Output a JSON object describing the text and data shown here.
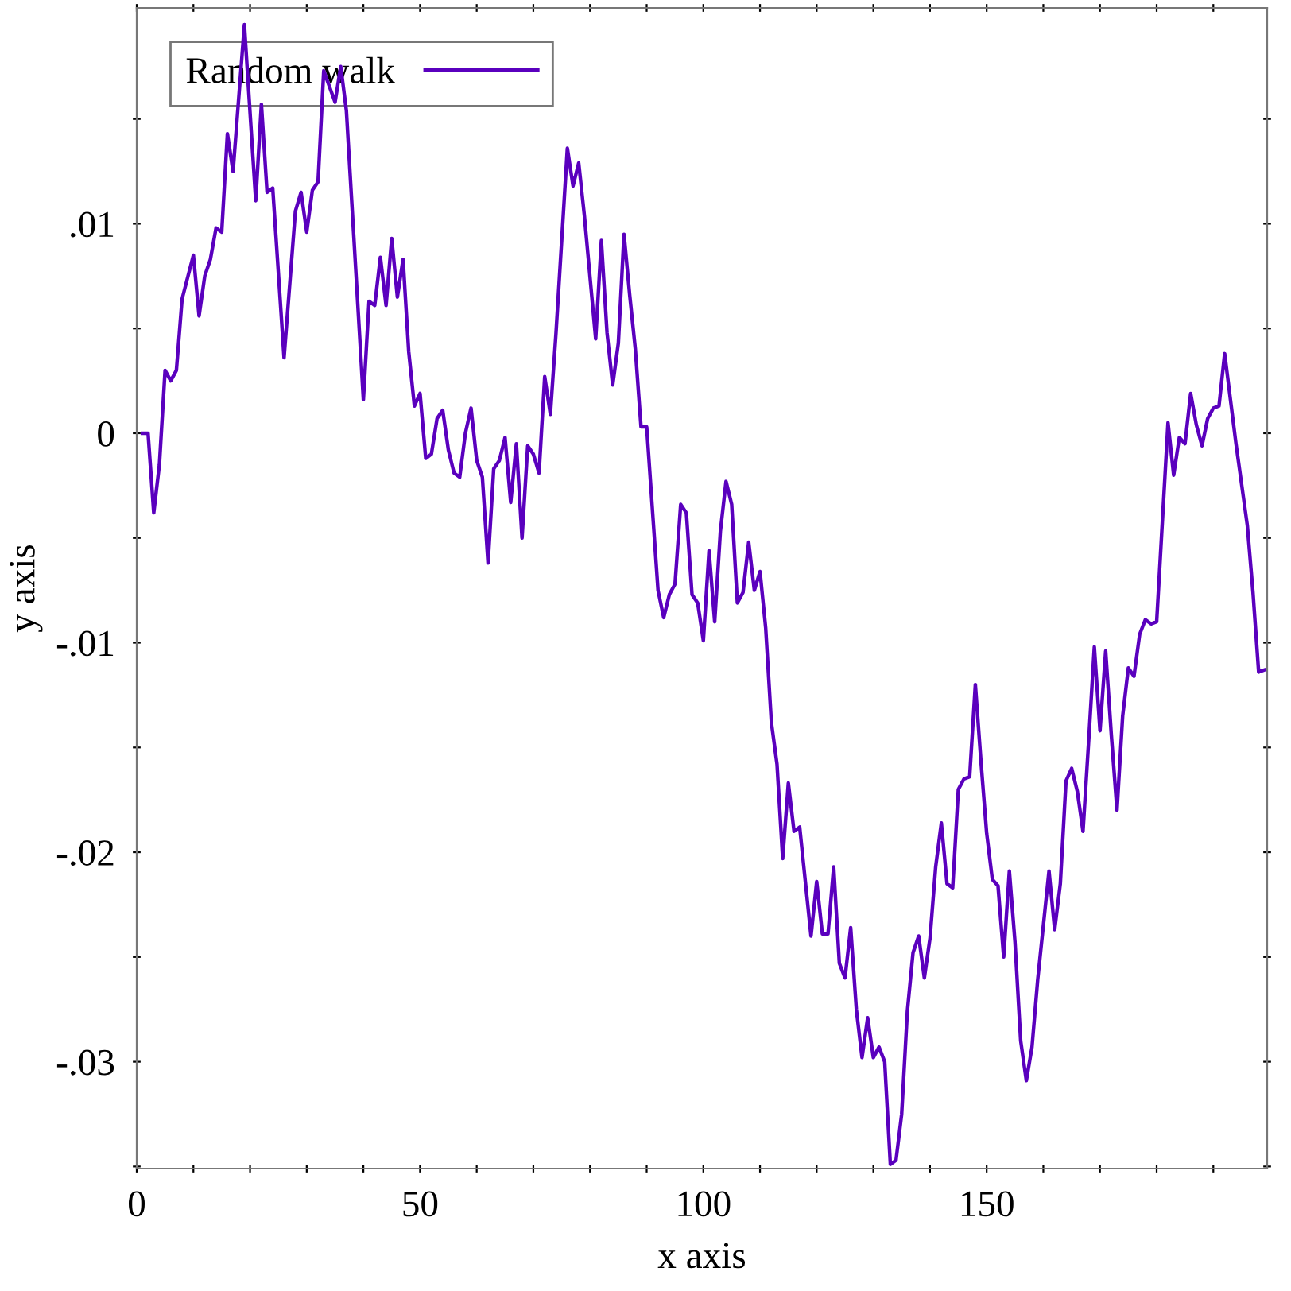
{
  "chart_data": {
    "type": "line",
    "xlabel": "x axis",
    "ylabel": "y axis",
    "xlim": [
      0,
      199.5
    ],
    "ylim": [
      -0.0351,
      0.0203
    ],
    "xticks": [
      0,
      {
        "value": 10,
        "label": null
      },
      {
        "value": 20,
        "label": null
      },
      {
        "value": 30,
        "label": null
      },
      {
        "value": 40,
        "label": null
      },
      50,
      {
        "value": 60,
        "label": null
      },
      {
        "value": 70,
        "label": null
      },
      {
        "value": 80,
        "label": null
      },
      {
        "value": 90,
        "label": null
      },
      100,
      {
        "value": 110,
        "label": null
      },
      {
        "value": 120,
        "label": null
      },
      {
        "value": 130,
        "label": null
      },
      {
        "value": 140,
        "label": null
      },
      150,
      {
        "value": 160,
        "label": null
      },
      {
        "value": 170,
        "label": null
      },
      {
        "value": 180,
        "label": null
      },
      {
        "value": 190,
        "label": null
      }
    ],
    "yticks": [
      {
        "value": -0.035,
        "label": null
      },
      {
        "value": -0.03,
        "label": "-.03"
      },
      {
        "value": -0.025,
        "label": null
      },
      {
        "value": -0.02,
        "label": "-.02"
      },
      {
        "value": -0.015,
        "label": null
      },
      {
        "value": -0.01,
        "label": "-.01"
      },
      {
        "value": -0.005,
        "label": null
      },
      0,
      {
        "value": 0.005,
        "label": null
      },
      {
        "value": 0.01,
        "label": ".01"
      },
      {
        "value": 0.015,
        "label": null
      }
    ],
    "grid": false,
    "legend": "top left",
    "marker": "none",
    "line_style": "solid",
    "series": [
      {
        "name": "Random walk",
        "color": "#5a00be",
        "x": [
          1,
          2,
          3,
          4,
          5,
          6,
          7,
          8,
          10,
          11,
          12,
          13,
          14,
          15,
          16,
          17,
          19,
          21,
          22,
          23,
          24,
          26,
          28,
          29,
          30,
          31,
          32,
          33,
          35,
          36,
          37,
          40,
          41,
          42,
          43,
          44,
          45,
          46,
          47,
          48,
          49,
          50,
          51,
          52,
          53,
          54,
          55,
          56,
          57,
          58,
          59,
          60,
          61,
          62,
          63,
          64,
          65,
          66,
          67,
          68,
          69,
          70,
          71,
          72,
          73,
          74,
          76,
          77,
          78,
          79,
          81,
          82,
          83,
          84,
          85,
          86,
          87,
          88,
          89,
          90,
          92,
          93,
          94,
          95,
          96,
          97,
          98,
          99,
          100,
          101,
          102,
          103,
          104,
          105,
          106,
          107,
          108,
          109,
          110,
          111,
          112,
          113,
          114,
          115,
          116,
          117,
          119,
          120,
          121,
          122,
          123,
          124,
          125,
          126,
          127,
          128,
          129,
          130,
          131,
          132,
          133,
          134,
          135,
          136,
          137,
          138,
          139,
          140,
          141,
          142,
          143,
          144,
          145,
          146,
          147,
          148,
          149,
          150,
          151,
          152,
          153,
          154,
          155,
          156,
          157,
          158,
          159,
          161,
          162,
          163,
          164,
          165,
          166,
          167,
          168,
          169,
          170,
          171,
          172,
          173,
          174,
          175,
          176,
          177,
          178,
          179,
          180,
          182,
          183,
          184,
          185,
          186,
          187,
          188,
          189,
          190,
          191,
          192,
          194,
          196,
          197,
          198,
          199
        ],
        "values": [
          0,
          0,
          -0.0038,
          -0.0015,
          0.003,
          0.0025,
          0.003,
          0.0064,
          0.0085,
          0.0056,
          0.0075,
          0.0083,
          0.0098,
          0.0096,
          0.0143,
          0.0125,
          0.0195,
          0.0111,
          0.0157,
          0.0115,
          0.0117,
          0.0036,
          0.0106,
          0.0115,
          0.0096,
          0.0116,
          0.012,
          0.0173,
          0.0158,
          0.0175,
          0.0154,
          0.0016,
          0.0063,
          0.0061,
          0.0084,
          0.0061,
          0.0093,
          0.0065,
          0.0083,
          0.0039,
          0.0013,
          0.0019,
          -0.0012,
          -0.001,
          0.0007,
          0.0011,
          -0.0008,
          -0.0019,
          -0.0021,
          0,
          0.0012,
          -0.0013,
          -0.0021,
          -0.0062,
          -0.0017,
          -0.0013,
          -0.0002,
          -0.0033,
          -0.0005,
          -0.005,
          -0.0006,
          -0.001,
          -0.0019,
          0.0027,
          0.0009,
          0.0048,
          0.0136,
          0.0118,
          0.0129,
          0.0104,
          0.0045,
          0.0092,
          0.0048,
          0.0023,
          0.0043,
          0.0095,
          0.0066,
          0.004,
          0.0003,
          0.0003,
          -0.0075,
          -0.0088,
          -0.0077,
          -0.0072,
          -0.0034,
          -0.0038,
          -0.0077,
          -0.0081,
          -0.0099,
          -0.0056,
          -0.009,
          -0.0047,
          -0.0023,
          -0.0034,
          -0.0081,
          -0.0076,
          -0.0052,
          -0.0075,
          -0.0066,
          -0.0093,
          -0.0138,
          -0.0158,
          -0.0203,
          -0.0167,
          -0.019,
          -0.0188,
          -0.024,
          -0.0214,
          -0.0239,
          -0.0239,
          -0.0207,
          -0.0253,
          -0.026,
          -0.0236,
          -0.0275,
          -0.0298,
          -0.0279,
          -0.0298,
          -0.0293,
          -0.03,
          -0.0349,
          -0.0347,
          -0.0325,
          -0.0276,
          -0.0248,
          -0.024,
          -0.026,
          -0.0241,
          -0.0207,
          -0.0186,
          -0.0215,
          -0.0217,
          -0.017,
          -0.0165,
          -0.0164,
          -0.012,
          -0.0157,
          -0.0191,
          -0.0213,
          -0.0216,
          -0.025,
          -0.0209,
          -0.0243,
          -0.029,
          -0.0309,
          -0.0293,
          -0.0261,
          -0.0209,
          -0.0237,
          -0.0215,
          -0.0166,
          -0.016,
          -0.0171,
          -0.019,
          -0.0147,
          -0.0102,
          -0.0142,
          -0.0104,
          -0.0144,
          -0.018,
          -0.0135,
          -0.0112,
          -0.0116,
          -0.0096,
          -0.0089,
          -0.0091,
          -0.009,
          0.0005,
          -0.002,
          -0.0002,
          -0.0005,
          0.0019,
          0.0004,
          -0.0006,
          0.0007,
          0.0012,
          0.0013,
          0.0038,
          -0.0005,
          -0.0044,
          -0.0076,
          -0.0114,
          -0.0113
        ]
      }
    ]
  }
}
